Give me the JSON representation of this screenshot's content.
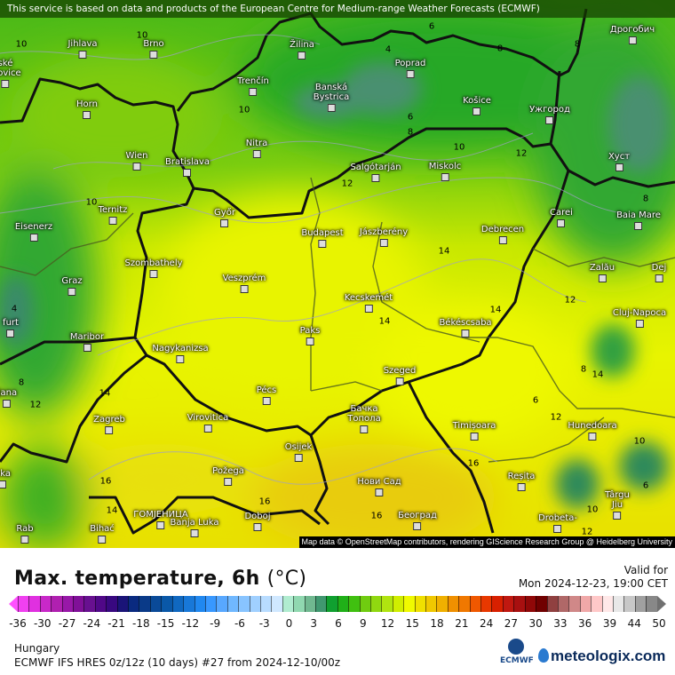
{
  "banner": "This service is based on data and products of the European Centre for Medium-range Weather Forecasts (ECMWF)",
  "attribution": "Map data © OpenStreetMap contributors, rendering GIScience Research Group @ Heidelberg University",
  "cities": [
    "Jihlava",
    "Brno",
    "ské\nějovice",
    "Žilina",
    "Trenčín",
    "Banská\nBystrica",
    "Poprad",
    "Košice",
    "Ужгород",
    "Дрогобич",
    "Horn",
    "Wien",
    "Bratislava",
    "Nitra",
    "Salgótarján",
    "Miskolc",
    "Хуст",
    "Ternitz",
    "Győr",
    "Budapest",
    "Jászberény",
    "Debrecen",
    "Carei",
    "Baia Mare",
    "Eisenerz",
    "Szombathely",
    "Veszprém",
    "Zalău",
    "Dej",
    "Graz",
    "Kecskemét",
    "Cluj-Napoca",
    "Paks",
    "Békéscsaba",
    "Maribor",
    "Nagykanizsa",
    "Pécs",
    "Szeged",
    "ljana",
    "Zagreb",
    "Virovitica",
    "Бачка\nТопола",
    "Timișoara",
    "Hunedoara",
    "Osijek",
    "Požega",
    "Нови Сад",
    "Reșița",
    "Târgu\nJiu",
    "ГОМЈЕНИЦА",
    "Bihać",
    "Banja Luka",
    "Doboj",
    "Rab",
    "eka",
    "furt",
    "Београд",
    "Drobeta-"
  ],
  "contour_labels": [
    "10",
    "10",
    "10",
    "10",
    "6",
    "4",
    "8",
    "8",
    "6",
    "8",
    "10",
    "12",
    "12",
    "8",
    "14",
    "14",
    "12",
    "4",
    "8",
    "12",
    "14",
    "6",
    "8",
    "14",
    "12",
    "10",
    "6",
    "10",
    "12",
    "14",
    "16",
    "16",
    "16",
    "16",
    "14"
  ],
  "legend": {
    "title": "Max. temperature, 6h",
    "unit": "(°C)",
    "valid_label": "Valid for",
    "valid_time": "Mon 2024-12-23, 19:00 CET",
    "ticks": [
      "-36",
      "-30",
      "-27",
      "-24",
      "-21",
      "-18",
      "-15",
      "-12",
      "-9",
      "-6",
      "-3",
      "0",
      "3",
      "6",
      "9",
      "12",
      "15",
      "18",
      "21",
      "24",
      "27",
      "30",
      "33",
      "36",
      "39",
      "44",
      "50"
    ],
    "colors": [
      "#f040f0",
      "#e030e0",
      "#c828c8",
      "#b020b0",
      "#9818a8",
      "#801098",
      "#681090",
      "#500888",
      "#380880",
      "#1a1478",
      "#0a2a80",
      "#0a3a88",
      "#0a4a98",
      "#0a58a8",
      "#1068c0",
      "#1878d8",
      "#2088f0",
      "#3898ff",
      "#58a8ff",
      "#70b8ff",
      "#88c4ff",
      "#a0d0ff",
      "#b8dcff",
      "#d0e8ff",
      "#b0ecd0",
      "#90d8b0",
      "#70b890",
      "#409870",
      "#10a030",
      "#20b018",
      "#40c010",
      "#70cc10",
      "#90d810",
      "#b0e410",
      "#d0ee00",
      "#f0fa00",
      "#f0e000",
      "#f0c800",
      "#f0b000",
      "#f09000",
      "#f07800",
      "#f05800",
      "#e83800",
      "#d82000",
      "#c01810",
      "#a81010",
      "#900808",
      "#700000",
      "#904040",
      "#b06868",
      "#d08888",
      "#f0a8a8",
      "#ffc8c8",
      "#ffe8e8",
      "#e8e8e8",
      "#c8c8c8",
      "#a0a0a0",
      "#888888"
    ],
    "region": "Hungary",
    "model": "ECMWF IFS HRES 0z/12z (10 days) #27 from  2024-12-10/00z",
    "ecmwf_label": "ECMWF",
    "brand": "meteologix.com"
  }
}
